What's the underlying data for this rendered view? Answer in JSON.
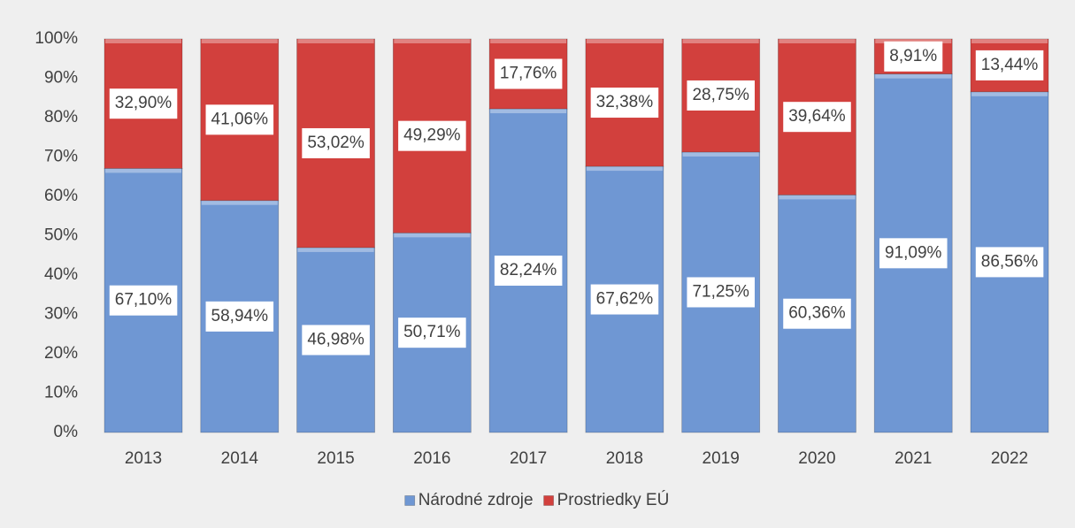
{
  "chart_data": {
    "type": "stacked_bar",
    "categories": [
      "2013",
      "2014",
      "2015",
      "2016",
      "2017",
      "2018",
      "2019",
      "2020",
      "2021",
      "2022"
    ],
    "series": [
      {
        "name": "Národné zdroje",
        "color": "#6f97d3",
        "values": [
          67.1,
          58.94,
          46.98,
          50.71,
          82.24,
          67.62,
          71.25,
          60.36,
          91.09,
          86.56
        ],
        "value_labels": [
          "67,10%",
          "58,94%",
          "46,98%",
          "50,71%",
          "82,24%",
          "67,62%",
          "71,25%",
          "60,36%",
          "91,09%",
          "86,56%"
        ]
      },
      {
        "name": "Prostriedky EÚ",
        "color": "#d2403d",
        "values": [
          32.9,
          41.06,
          53.02,
          49.29,
          17.76,
          32.38,
          28.75,
          39.64,
          8.91,
          13.44
        ],
        "value_labels": [
          "32,90%",
          "41,06%",
          "53,02%",
          "49,29%",
          "17,76%",
          "32,38%",
          "28,75%",
          "39,64%",
          "8,91%",
          "13,44%"
        ]
      }
    ],
    "ylim": [
      0,
      100
    ],
    "yticks": [
      {
        "value": 0,
        "label": "0%"
      },
      {
        "value": 10,
        "label": "10%"
      },
      {
        "value": 20,
        "label": "20%"
      },
      {
        "value": 30,
        "label": "30%"
      },
      {
        "value": 40,
        "label": "40%"
      },
      {
        "value": 50,
        "label": "50%"
      },
      {
        "value": 60,
        "label": "60%"
      },
      {
        "value": 70,
        "label": "70%"
      },
      {
        "value": 80,
        "label": "80%"
      },
      {
        "value": 90,
        "label": "90%"
      },
      {
        "value": 100,
        "label": "100%"
      }
    ],
    "legend": "bottom"
  }
}
